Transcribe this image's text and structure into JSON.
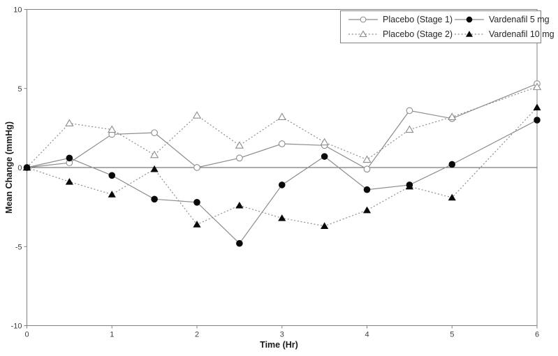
{
  "figure": {
    "background": "#ffffff"
  },
  "axes": {
    "border_color": "#808080",
    "zero_line_color": "#595959",
    "tick_color": "#808080",
    "tick_label_color": "#404040",
    "tick_label_size": 11
  },
  "chart_data": {
    "type": "line",
    "title": "",
    "xlabel": "Time (Hr)",
    "ylabel": "Mean Change (mmHg)",
    "xlim": [
      0,
      6
    ],
    "ylim": [
      -10,
      10
    ],
    "x_ticks": [
      0,
      1,
      2,
      3,
      4,
      5,
      6
    ],
    "y_ticks": [
      10,
      5,
      0,
      -5,
      -10
    ],
    "grid": false,
    "zero_line": true,
    "legend_position": "top-right-inside",
    "x": [
      0,
      0.5,
      1,
      1.5,
      2,
      2.5,
      3,
      3.5,
      4,
      4.5,
      5,
      6
    ],
    "series": [
      {
        "name": "Placebo (Stage 1)",
        "marker": "open-circle",
        "line": "solid",
        "line_color": "#8c8c8c",
        "marker_color": "#8c8c8c",
        "values": [
          0,
          0.3,
          2.1,
          2.2,
          0,
          0.6,
          1.5,
          1.4,
          -0.1,
          3.6,
          3.1,
          5.3
        ]
      },
      {
        "name": "Placebo (Stage 2)",
        "marker": "open-triangle",
        "line": "dotted",
        "line_color": "#8c8c8c",
        "marker_color": "#8c8c8c",
        "values": [
          0,
          2.8,
          2.4,
          0.8,
          3.3,
          1.4,
          3.2,
          1.6,
          0.5,
          2.4,
          3.2,
          5.1
        ]
      },
      {
        "name": "Vardenafil 5 mg",
        "marker": "filled-circle",
        "line": "solid",
        "line_color": "#8c8c8c",
        "marker_color": "#0a0a0a",
        "values": [
          0,
          0.6,
          -0.5,
          -2,
          -2.2,
          -4.8,
          -1.1,
          0.7,
          -1.4,
          -1.1,
          0.2,
          3
        ]
      },
      {
        "name": "Vardenafil 10 mg",
        "marker": "filled-triangle",
        "line": "dotted",
        "line_color": "#8c8c8c",
        "marker_color": "#0a0a0a",
        "values": [
          0,
          -0.9,
          -1.7,
          -0.1,
          -3.6,
          -2.4,
          -3.2,
          -3.7,
          -2.7,
          -1.2,
          -1.9,
          3.8
        ]
      }
    ]
  }
}
